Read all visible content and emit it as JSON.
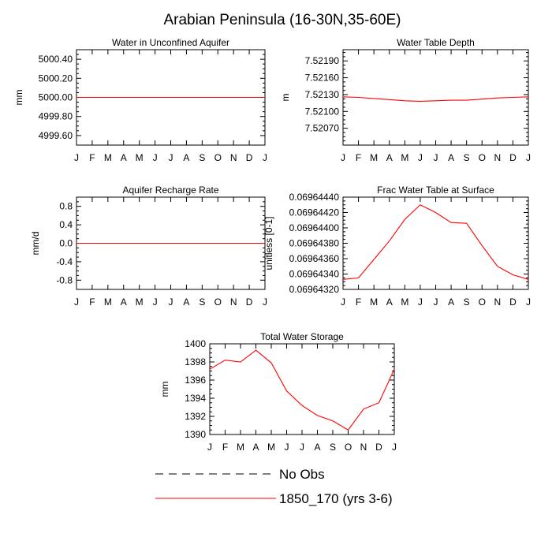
{
  "figure": {
    "title": "Arabian Peninsula (16-30N,35-60E)"
  },
  "legend": {
    "entries": [
      {
        "label": "No Obs",
        "color": "#000000",
        "style": "dashed"
      },
      {
        "label": "1850_170 (yrs 3-6)",
        "color": "#ff0000",
        "style": "solid"
      }
    ]
  },
  "chart_data": [
    {
      "type": "line",
      "title": "Water in Unconfined Aquifer",
      "ylabel": "mm",
      "x": [
        "J",
        "F",
        "M",
        "A",
        "M",
        "J",
        "J",
        "A",
        "S",
        "O",
        "N",
        "D",
        "J"
      ],
      "ylim": [
        4999.5,
        5000.5
      ],
      "yticks": [
        4999.6,
        4999.8,
        5000.0,
        5000.2,
        5000.4
      ],
      "ytick_labels": [
        "4999.60",
        "4999.80",
        "5000.00",
        "5000.20",
        "5000.40"
      ],
      "series": [
        {
          "color": "#ff0000",
          "values": [
            5000,
            5000,
            5000,
            5000,
            5000,
            5000,
            5000,
            5000,
            5000,
            5000,
            5000,
            5000,
            5000
          ]
        }
      ]
    },
    {
      "type": "line",
      "title": "Water Table Depth",
      "ylabel": "m",
      "x": [
        "J",
        "F",
        "M",
        "A",
        "M",
        "J",
        "J",
        "A",
        "S",
        "O",
        "N",
        "D",
        "J"
      ],
      "ylim": [
        7.5204,
        7.5221
      ],
      "yticks": [
        7.5207,
        7.521,
        7.5213,
        7.5216,
        7.5219
      ],
      "ytick_labels": [
        "7.52070",
        "7.52100",
        "7.52130",
        "7.52160",
        "7.52190"
      ],
      "series": [
        {
          "color": "#ff0000",
          "values": [
            7.52126,
            7.52125,
            7.52123,
            7.52121,
            7.52119,
            7.52118,
            7.52119,
            7.5212,
            7.5212,
            7.52122,
            7.52124,
            7.52125,
            7.52126
          ]
        }
      ]
    },
    {
      "type": "line",
      "title": "Aquifer Recharge Rate",
      "ylabel": "mm/d",
      "x": [
        "J",
        "F",
        "M",
        "A",
        "M",
        "J",
        "J",
        "A",
        "S",
        "O",
        "N",
        "D",
        "J"
      ],
      "ylim": [
        -1.0,
        1.0
      ],
      "yticks": [
        -0.8,
        -0.4,
        0.0,
        0.4,
        0.8
      ],
      "ytick_labels": [
        "-0.8",
        "-0.4",
        "0.0",
        "0.4",
        "0.8"
      ],
      "series": [
        {
          "color": "#ff0000",
          "values": [
            0,
            0,
            0,
            0,
            0,
            0,
            0,
            0,
            0,
            0,
            0,
            0,
            0
          ]
        }
      ]
    },
    {
      "type": "line",
      "title": "Frac Water Table at Surface",
      "ylabel": "unitless [0-1]",
      "x": [
        "J",
        "F",
        "M",
        "A",
        "M",
        "J",
        "J",
        "A",
        "S",
        "O",
        "N",
        "D",
        "J"
      ],
      "ylim": [
        0.0696432,
        0.0696444
      ],
      "yticks": [
        0.0696432,
        0.0696434,
        0.0696436,
        0.0696438,
        0.069644,
        0.0696442,
        0.0696444
      ],
      "ytick_labels": [
        "0.06964320",
        "0.06964340",
        "0.06964360",
        "0.06964380",
        "0.06964400",
        "0.06964420",
        "0.06964440"
      ],
      "series": [
        {
          "color": "#ff0000",
          "values": [
            0.06964333,
            0.06964335,
            0.06964359,
            0.06964383,
            0.06964411,
            0.0696443,
            0.0696442,
            0.06964407,
            0.06964406,
            0.06964377,
            0.0696435,
            0.06964339,
            0.06964333
          ]
        }
      ]
    },
    {
      "type": "line",
      "title": "Total Water Storage",
      "ylabel": "mm",
      "x": [
        "J",
        "F",
        "M",
        "A",
        "M",
        "J",
        "J",
        "A",
        "S",
        "O",
        "N",
        "D",
        "J"
      ],
      "ylim": [
        1390,
        1400
      ],
      "yticks": [
        1390,
        1392,
        1394,
        1396,
        1398,
        1400
      ],
      "ytick_labels": [
        "1390",
        "1392",
        "1394",
        "1396",
        "1398",
        "1400"
      ],
      "series": [
        {
          "color": "#ff0000",
          "values": [
            1397.2,
            1398.2,
            1398.0,
            1399.3,
            1397.9,
            1394.8,
            1393.2,
            1392.1,
            1391.5,
            1390.5,
            1392.8,
            1393.5,
            1397.2
          ]
        }
      ]
    }
  ]
}
